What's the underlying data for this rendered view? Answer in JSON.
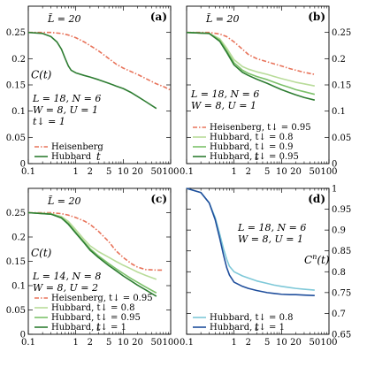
{
  "chart_data": [
    {
      "id": "a",
      "type": "line",
      "panel_label": "(a)",
      "title": "L̃ = 20",
      "xlabel": "t",
      "ylabel": "C(t)",
      "xscale": "log",
      "xlim": [
        0.1,
        100
      ],
      "ylim": [
        0,
        0.3
      ],
      "xticks": [
        0.1,
        1,
        10,
        100
      ],
      "xtick_labels": [
        "0.1",
        "1",
        "10",
        "100"
      ],
      "x_label_ticks": [
        0.1,
        1,
        2,
        5,
        10,
        20,
        50,
        100
      ],
      "x_label_ticks_text": [
        "0.1",
        "1",
        "2",
        "5",
        "10",
        "20",
        "50",
        "100"
      ],
      "yticks": [
        0,
        0.05,
        0.1,
        0.15,
        0.2,
        0.25
      ],
      "ytick_labels": [
        "0",
        "0.05",
        "0.1",
        "0.15",
        "0.2",
        "0.25"
      ],
      "annotation": [
        "L = 18, N = 6",
        "W = 8, U = 1",
        "t↓ = 1"
      ],
      "legend_position": "lower-left",
      "series": [
        {
          "name": "Heisenberg",
          "color": "#e8735a",
          "style": "dashdot",
          "x": [
            0.1,
            0.3,
            0.5,
            0.7,
            1,
            1.5,
            2,
            3,
            5,
            7,
            10,
            15,
            20,
            30,
            50,
            70,
            100
          ],
          "y": [
            0.25,
            0.25,
            0.248,
            0.245,
            0.24,
            0.232,
            0.225,
            0.215,
            0.2,
            0.19,
            0.182,
            0.175,
            0.17,
            0.162,
            0.152,
            0.147,
            0.14
          ]
        },
        {
          "name": "Hubbard",
          "color": "#2e7d32",
          "style": "solid",
          "x": [
            0.1,
            0.2,
            0.3,
            0.4,
            0.5,
            0.6,
            0.7,
            0.8,
            1,
            1.5,
            2,
            3,
            5,
            7,
            10,
            15,
            20,
            30,
            50
          ],
          "y": [
            0.25,
            0.248,
            0.242,
            0.232,
            0.218,
            0.2,
            0.186,
            0.178,
            0.173,
            0.168,
            0.165,
            0.16,
            0.153,
            0.148,
            0.143,
            0.135,
            0.128,
            0.118,
            0.105
          ]
        }
      ]
    },
    {
      "id": "b",
      "type": "line",
      "panel_label": "(b)",
      "title": "L̃ = 20",
      "xlabel": "t",
      "ylabel": "C(t)",
      "xscale": "log",
      "xlim": [
        0.1,
        100
      ],
      "ylim": [
        0,
        0.3
      ],
      "xticks": [
        0.1,
        1,
        10,
        100
      ],
      "xtick_labels": [
        "0.1",
        "1",
        "10",
        "100"
      ],
      "x_label_ticks": [
        0.1,
        1,
        2,
        5,
        10,
        20,
        50,
        100
      ],
      "x_label_ticks_text": [
        "0.1",
        "1",
        "2",
        "5",
        "10",
        "20",
        "50",
        "100"
      ],
      "yticks": [
        0,
        0.05,
        0.1,
        0.15,
        0.2,
        0.25
      ],
      "ytick_labels": [
        "0",
        "0.05",
        "0.1",
        "0.15",
        "0.2",
        "0.25"
      ],
      "annotation": [
        "L = 18, N = 6",
        "W = 8, U = 1"
      ],
      "legend_position": "lower-left",
      "series": [
        {
          "name": "Heisenberg, t↓ = 0.95",
          "color": "#e8735a",
          "style": "dashdot",
          "x": [
            0.1,
            0.3,
            0.5,
            0.7,
            1,
            1.5,
            2,
            3,
            5,
            7,
            10,
            15,
            20,
            30,
            50
          ],
          "y": [
            0.25,
            0.25,
            0.247,
            0.242,
            0.232,
            0.218,
            0.208,
            0.2,
            0.194,
            0.19,
            0.186,
            0.181,
            0.178,
            0.174,
            0.17
          ]
        },
        {
          "name": "Hubbard, t↓ = 0.8",
          "color": "#b9dc9a",
          "style": "solid",
          "x": [
            0.1,
            0.3,
            0.5,
            0.7,
            1,
            1.5,
            2,
            3,
            5,
            7,
            10,
            15,
            20,
            30,
            50
          ],
          "y": [
            0.25,
            0.248,
            0.238,
            0.22,
            0.198,
            0.185,
            0.18,
            0.175,
            0.17,
            0.166,
            0.162,
            0.158,
            0.155,
            0.152,
            0.148
          ]
        },
        {
          "name": "Hubbard, t↓ = 0.9",
          "color": "#7cc16a",
          "style": "solid",
          "x": [
            0.1,
            0.3,
            0.5,
            0.7,
            1,
            1.5,
            2,
            3,
            5,
            7,
            10,
            15,
            20,
            30,
            50
          ],
          "y": [
            0.25,
            0.248,
            0.235,
            0.215,
            0.192,
            0.178,
            0.172,
            0.166,
            0.16,
            0.155,
            0.15,
            0.145,
            0.141,
            0.137,
            0.132
          ]
        },
        {
          "name": "Hubbard, t↓ = 0.95",
          "color": "#2e7d32",
          "style": "solid",
          "x": [
            0.1,
            0.3,
            0.5,
            0.7,
            1,
            1.5,
            2,
            3,
            5,
            7,
            10,
            15,
            20,
            30,
            50
          ],
          "y": [
            0.25,
            0.248,
            0.233,
            0.212,
            0.188,
            0.174,
            0.168,
            0.161,
            0.153,
            0.147,
            0.141,
            0.135,
            0.131,
            0.126,
            0.121
          ]
        }
      ]
    },
    {
      "id": "c",
      "type": "line",
      "panel_label": "(c)",
      "title": "L̃ = 20",
      "xlabel": "t",
      "ylabel": "C(t)",
      "xscale": "log",
      "xlim": [
        0.1,
        100
      ],
      "ylim": [
        0,
        0.3
      ],
      "xticks": [
        0.1,
        1,
        10,
        100
      ],
      "xtick_labels": [
        "0.1",
        "1",
        "10",
        "100"
      ],
      "x_label_ticks": [
        0.1,
        1,
        2,
        5,
        10,
        20,
        50,
        100
      ],
      "x_label_ticks_text": [
        "0.1",
        "1",
        "2",
        "5",
        "10",
        "20",
        "50",
        "100"
      ],
      "yticks": [
        0,
        0.05,
        0.1,
        0.15,
        0.2,
        0.25
      ],
      "ytick_labels": [
        "0",
        "0.05",
        "0.1",
        "0.15",
        "0.2",
        "0.25"
      ],
      "annotation": [
        "L = 14, N = 8",
        "W = 8, U = 2"
      ],
      "legend_position": "lower-left",
      "series": [
        {
          "name": "Heisenberg, t↓ = 0.95",
          "color": "#e8735a",
          "style": "dashdot",
          "x": [
            0.1,
            0.3,
            0.5,
            0.7,
            1,
            1.5,
            2,
            3,
            5,
            7,
            10,
            15,
            20,
            30,
            50,
            70
          ],
          "y": [
            0.25,
            0.25,
            0.248,
            0.245,
            0.24,
            0.233,
            0.226,
            0.212,
            0.19,
            0.172,
            0.158,
            0.145,
            0.138,
            0.133,
            0.132,
            0.132
          ]
        },
        {
          "name": "Hubbard, t↓ = 0.8",
          "color": "#b9dc9a",
          "style": "solid",
          "x": [
            0.1,
            0.3,
            0.5,
            0.7,
            1,
            1.5,
            2,
            3,
            5,
            7,
            10,
            15,
            20,
            30,
            50
          ],
          "y": [
            0.25,
            0.248,
            0.242,
            0.232,
            0.215,
            0.195,
            0.182,
            0.17,
            0.158,
            0.15,
            0.142,
            0.134,
            0.128,
            0.121,
            0.113
          ]
        },
        {
          "name": "Hubbard, t↓ = 0.95",
          "color": "#7cc16a",
          "style": "solid",
          "x": [
            0.1,
            0.3,
            0.5,
            0.7,
            1,
            1.5,
            2,
            3,
            5,
            7,
            10,
            15,
            20,
            30,
            50
          ],
          "y": [
            0.25,
            0.247,
            0.24,
            0.228,
            0.21,
            0.19,
            0.176,
            0.161,
            0.145,
            0.135,
            0.125,
            0.114,
            0.107,
            0.097,
            0.085
          ]
        },
        {
          "name": "Hubbard, t↓ = 1",
          "color": "#2e7d32",
          "style": "solid",
          "x": [
            0.1,
            0.3,
            0.5,
            0.7,
            1,
            1.5,
            2,
            3,
            5,
            7,
            10,
            15,
            20,
            30,
            50
          ],
          "y": [
            0.25,
            0.247,
            0.239,
            0.226,
            0.208,
            0.188,
            0.173,
            0.158,
            0.141,
            0.131,
            0.12,
            0.109,
            0.101,
            0.091,
            0.078
          ]
        }
      ]
    },
    {
      "id": "d",
      "type": "line",
      "panel_label": "(d)",
      "title": "",
      "xlabel": "t",
      "ylabel": "C^n(t)",
      "xscale": "log",
      "xlim": [
        0.1,
        100
      ],
      "ylim": [
        0.65,
        1.0
      ],
      "xticks": [
        0.1,
        1,
        10,
        100
      ],
      "xtick_labels": [
        "0.1",
        "1",
        "10",
        "100"
      ],
      "x_label_ticks": [
        0.1,
        1,
        2,
        5,
        10,
        20,
        50,
        100
      ],
      "x_label_ticks_text": [
        "0.1",
        "1",
        "2",
        "5",
        "10",
        "20",
        "50",
        "100"
      ],
      "yticks": [
        0.65,
        0.7,
        0.75,
        0.8,
        0.85,
        0.9,
        0.95,
        1.0
      ],
      "ytick_labels": [
        "0.65",
        "0.7",
        "0.75",
        "0.8",
        "0.85",
        "0.9",
        "0.95",
        "1"
      ],
      "annotation": [
        "L = 18, N = 6",
        "W = 8, U = 1"
      ],
      "legend_position": "lower-left",
      "series": [
        {
          "name": "Hubbard, t↓ = 0.8",
          "color": "#7ec8d8",
          "style": "solid",
          "x": [
            0.1,
            0.2,
            0.3,
            0.4,
            0.5,
            0.6,
            0.7,
            0.8,
            1,
            1.5,
            2,
            3,
            5,
            7,
            10,
            15,
            20,
            30,
            50
          ],
          "y": [
            1.0,
            0.99,
            0.965,
            0.93,
            0.89,
            0.855,
            0.83,
            0.813,
            0.8,
            0.79,
            0.785,
            0.778,
            0.772,
            0.768,
            0.765,
            0.762,
            0.76,
            0.758,
            0.756
          ]
        },
        {
          "name": "Hubbard, t↓ = 1",
          "color": "#1f4e9c",
          "style": "solid",
          "x": [
            0.1,
            0.2,
            0.3,
            0.4,
            0.5,
            0.6,
            0.7,
            0.8,
            1,
            1.5,
            2,
            3,
            5,
            7,
            10,
            15,
            20,
            30,
            50
          ],
          "y": [
            1.0,
            0.99,
            0.965,
            0.925,
            0.88,
            0.84,
            0.81,
            0.792,
            0.775,
            0.765,
            0.76,
            0.755,
            0.75,
            0.748,
            0.746,
            0.745,
            0.745,
            0.744,
            0.743
          ]
        }
      ]
    }
  ]
}
